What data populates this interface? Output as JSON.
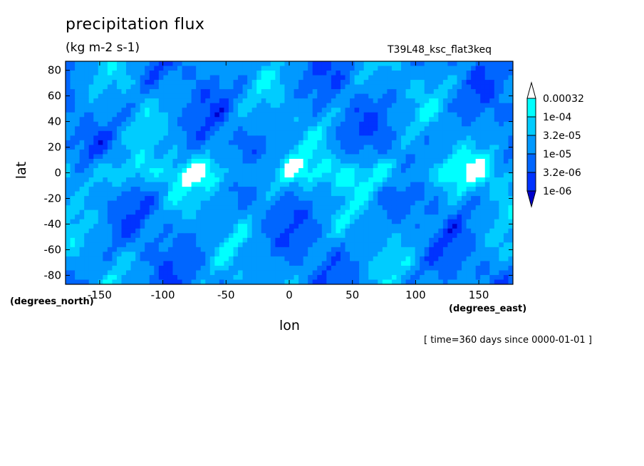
{
  "header": {
    "title": "precipitation flux",
    "units": "(kg m-2 s-1)",
    "run_name": "T39L48_ksc_flat3keq"
  },
  "footer": {
    "time_stamp": "[ time=360 days since 0000-01-01 ]"
  },
  "chart_data": {
    "type": "heatmap",
    "title": "precipitation flux",
    "units": "(kg m-2 s-1)",
    "xlabel": "lon",
    "ylabel": "lat",
    "x_units": "(degrees_east)",
    "y_units": "(degrees_north)",
    "xlim": [
      -177,
      177
    ],
    "ylim": [
      -87,
      87
    ],
    "x_ticks": [
      -150,
      -100,
      -50,
      0,
      50,
      100,
      150
    ],
    "y_ticks": [
      80,
      60,
      40,
      20,
      0,
      -20,
      -40,
      -60,
      -80
    ],
    "colorbar": {
      "labels": [
        "0.00032",
        "1e-04",
        "3.2e-05",
        "1e-05",
        "3.2e-06",
        "1e-06"
      ],
      "colors": [
        "#ffffff",
        "#00ffff",
        "#00ccff",
        "#0099ff",
        "#0066ff",
        "#0033ff",
        "#0000cc"
      ],
      "extend": "both",
      "placement": "right"
    },
    "grid": false
  }
}
